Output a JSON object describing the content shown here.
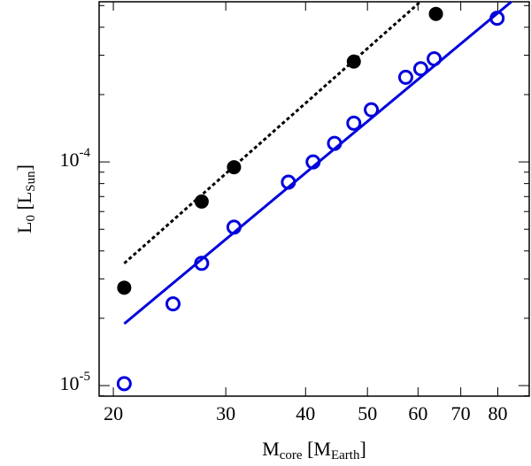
{
  "chart_data": {
    "type": "scatter",
    "xlabel": [
      "M",
      "core",
      " [M",
      "Earth",
      "]"
    ],
    "ylabel": [
      "L",
      "0",
      " [L",
      "Sun",
      "]"
    ],
    "xlog": true,
    "ylog": true,
    "xlim": [
      19.0,
      89.6
    ],
    "ylim": [
      8.97e-06,
      0.00052
    ],
    "xticks": [
      20,
      30,
      40,
      50,
      60,
      70,
      80
    ],
    "yticks": [
      {
        "value": 1e-05,
        "label": "10",
        "exponent": "-5"
      },
      {
        "value": 0.0001,
        "label": "10",
        "exponent": "-4"
      }
    ],
    "series": [
      {
        "kind": "line",
        "style": "dotted",
        "color": "#000000",
        "x": [
          20.8,
          60.5
        ],
        "values": [
          3.52e-05,
          0.00052
        ]
      },
      {
        "kind": "line",
        "style": "solid",
        "color": "#0000dd",
        "x": [
          20.8,
          84.0
        ],
        "values": [
          1.89e-05,
          0.00052
        ]
      },
      {
        "kind": "points",
        "filled": true,
        "color": "#000000",
        "x": [
          20.8,
          27.5,
          30.9,
          47.6,
          64.0
        ],
        "values": [
          2.74e-05,
          6.65e-05,
          9.47e-05,
          0.000281,
          0.000459
        ]
      },
      {
        "kind": "points",
        "filled": false,
        "color": "#0000dd",
        "x": [
          20.8,
          24.8,
          27.5,
          30.9,
          37.6,
          41.1,
          44.4,
          47.6,
          50.7,
          57.4,
          60.6,
          63.6,
          79.8
        ],
        "values": [
          1.02e-05,
          2.32e-05,
          3.52e-05,
          5.11e-05,
          8.12e-05,
          0.0001,
          0.000121,
          0.000149,
          0.000171,
          0.000239,
          0.000261,
          0.000289,
          0.000439
        ]
      }
    ]
  }
}
